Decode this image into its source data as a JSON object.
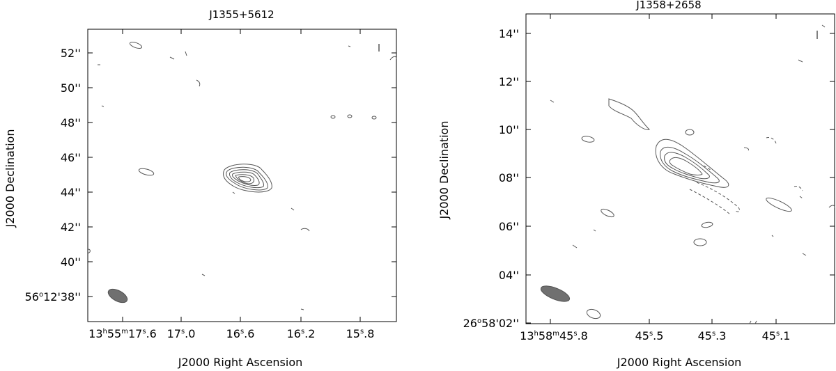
{
  "chart_data": [
    {
      "type": "contour",
      "title": "J1355+5612",
      "xlabel": "J2000 Right Ascension",
      "ylabel": "J2000 Declination",
      "x_ticks": [
        {
          "value": 17.6,
          "h": "13",
          "m": "55",
          "s": "17",
          "frac": ".6"
        },
        {
          "value": 17.0,
          "s": "17",
          "frac": ".0"
        },
        {
          "value": 16.6,
          "s": "16",
          "frac": ".6"
        },
        {
          "value": 16.2,
          "s": "16",
          "frac": ".2"
        },
        {
          "value": 15.8,
          "s": "15",
          "frac": ".8"
        }
      ],
      "y_ticks": [
        {
          "value": 52,
          "label": "52''"
        },
        {
          "value": 50,
          "label": "50''"
        },
        {
          "value": 48,
          "label": "48''"
        },
        {
          "value": 46,
          "label": "46''"
        },
        {
          "value": 44,
          "label": "44''"
        },
        {
          "value": 42,
          "label": "42''"
        },
        {
          "value": 40,
          "label": "40''"
        },
        {
          "value": 38,
          "label": "38''",
          "deg": "56",
          "arcmin": "12'"
        }
      ],
      "xlim": [
        17.72,
        15.55
      ],
      "ylim": [
        36.9,
        53.3
      ],
      "source_peak": {
        "ra_s": 16.55,
        "dec_arcsec": 44.7
      },
      "beam": {
        "ra_s": 17.58,
        "dec_arcsec": 38.1
      }
    },
    {
      "type": "contour",
      "title": "J1358+2658",
      "xlabel": "J2000 Right Ascension",
      "ylabel": "J2000 Declination",
      "x_ticks": [
        {
          "value": 45.8,
          "h": "13",
          "m": "58",
          "s": "45",
          "frac": ".8"
        },
        {
          "value": 45.5,
          "s": "45",
          "frac": ".5"
        },
        {
          "value": 45.3,
          "s": "45",
          "frac": ".3"
        },
        {
          "value": 45.1,
          "s": "45",
          "frac": ".1"
        }
      ],
      "y_ticks": [
        {
          "value": 14,
          "label": "14''"
        },
        {
          "value": 12,
          "label": "12''"
        },
        {
          "value": 10,
          "label": "10''"
        },
        {
          "value": 8,
          "label": "08''"
        },
        {
          "value": 6,
          "label": "06''"
        },
        {
          "value": 4,
          "label": "04''"
        },
        {
          "value": 2,
          "label": "02''",
          "deg": "26",
          "arcmin": "58'"
        }
      ],
      "xlim": [
        45.92,
        44.96
      ],
      "ylim": [
        1.8,
        14.9
      ],
      "source_peak": {
        "ra_s": 45.35,
        "dec_arcsec": 8.5
      },
      "beam": {
        "ra_s": 45.79,
        "dec_arcsec": 3.1
      }
    }
  ]
}
